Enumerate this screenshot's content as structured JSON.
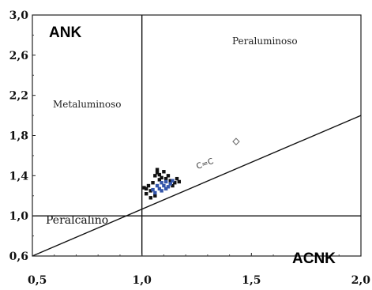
{
  "chart_data": {
    "type": "scatter",
    "title": "",
    "xlabel": "ACNK",
    "ylabel": "ANK",
    "xlim": [
      0.5,
      2.0
    ],
    "ylim": [
      0.6,
      3.0
    ],
    "x_ticks": [
      "0,5",
      "1,0",
      "1,5",
      "2,0"
    ],
    "y_ticks": [
      "0,6",
      "1,0",
      "1,4",
      "1,8",
      "2,2",
      "2,6",
      "3,0"
    ],
    "grid": false,
    "region_labels": {
      "peraluminoso": "Peraluminoso",
      "metaluminoso": "Metaluminoso",
      "peralcalino": "Peralcalino"
    },
    "annotation": "C=C",
    "boundary_lines": {
      "vertical_x": 1.0,
      "horizontal_y": 1.0,
      "diagonal": [
        [
          0.5,
          0.6
        ],
        [
          2.0,
          2.0
        ]
      ]
    },
    "series": [
      {
        "color": "#111111",
        "points": [
          [
            1.01,
            1.28
          ],
          [
            1.02,
            1.22
          ],
          [
            1.03,
            1.3
          ],
          [
            1.04,
            1.25
          ],
          [
            1.05,
            1.33
          ],
          [
            1.06,
            1.4
          ],
          [
            1.07,
            1.43
          ],
          [
            1.07,
            1.46
          ],
          [
            1.08,
            1.41
          ],
          [
            1.09,
            1.38
          ],
          [
            1.1,
            1.44
          ],
          [
            1.11,
            1.37
          ],
          [
            1.12,
            1.4
          ],
          [
            1.13,
            1.35
          ],
          [
            1.15,
            1.33
          ],
          [
            1.16,
            1.37
          ],
          [
            1.17,
            1.34
          ],
          [
            1.04,
            1.18
          ],
          [
            1.06,
            1.2
          ],
          [
            1.02,
            1.27
          ],
          [
            1.08,
            1.36
          ],
          [
            1.14,
            1.3
          ]
        ]
      },
      {
        "color": "#3355aa",
        "points": [
          [
            1.05,
            1.26
          ],
          [
            1.07,
            1.3
          ],
          [
            1.08,
            1.27
          ],
          [
            1.09,
            1.33
          ],
          [
            1.1,
            1.3
          ],
          [
            1.11,
            1.34
          ],
          [
            1.12,
            1.29
          ],
          [
            1.13,
            1.32
          ],
          [
            1.06,
            1.23
          ],
          [
            1.09,
            1.25
          ],
          [
            1.11,
            1.27
          ],
          [
            1.14,
            1.35
          ]
        ]
      },
      {
        "color": "#666666",
        "marker": "diamond-open",
        "points": [
          [
            1.43,
            1.74
          ]
        ]
      }
    ]
  }
}
